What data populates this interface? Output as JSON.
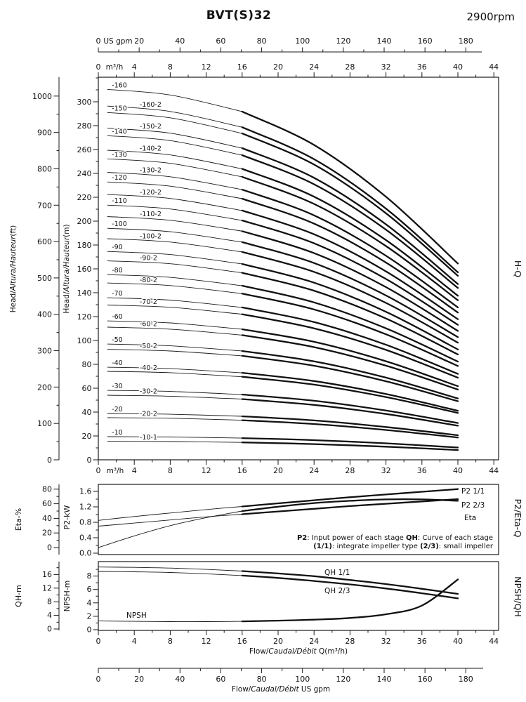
{
  "header": {
    "title": "BVT(S)32",
    "rpm": "2900rpm"
  },
  "labels": {
    "head_ft": [
      "Head/",
      "Altura/Hauteur",
      "(ft)"
    ],
    "head_m": [
      "Head/",
      "Altura/Hauteur",
      "(m)"
    ],
    "flow_m3h": [
      "Flow/",
      "Caudal/Débit",
      " Q(m³/h)"
    ],
    "flow_gpm": [
      "Flow/",
      "Caudal/Débit",
      "  US gpm"
    ],
    "eta_axis": "Eta-%",
    "p2_axis": "P2-kW",
    "qh_axis": "QH-m",
    "npsh_axis": "NPSH-m",
    "right_hq": "H-Q",
    "right_p2": "P2/Eta-Q",
    "right_npsh": "NPSH/QH",
    "unit_m3h": "m³/h",
    "unit_gpm": "US gpm"
  },
  "annotation": {
    "line1": [
      [
        "P2",
        2
      ],
      [
        ": Input power of each stage ",
        0
      ],
      [
        "QH",
        2
      ],
      [
        ": Curve of each stage",
        0
      ]
    ],
    "line2": [
      [
        "(1/1)",
        2
      ],
      [
        ": integrate impeller type ",
        0
      ],
      [
        "(2/3)",
        2
      ],
      [
        ": small impeller",
        0
      ]
    ]
  },
  "chart_data": [
    {
      "name": "H-Q",
      "type": "line",
      "x": {
        "unit": "m³/h",
        "range": [
          0,
          44
        ],
        "m3h_ticks": [
          0,
          4,
          8,
          12,
          16,
          20,
          24,
          28,
          32,
          36,
          40,
          44
        ],
        "gpm_ticks": [
          0,
          20,
          40,
          60,
          80,
          100,
          120,
          140,
          160,
          180
        ],
        "gpm_range": [
          0,
          196
        ]
      },
      "y": {
        "unit": "m",
        "range_m": [
          0,
          320
        ],
        "m_ticks": [
          0,
          20,
          40,
          60,
          80,
          100,
          120,
          140,
          160,
          180,
          200,
          220,
          240,
          260,
          280,
          300
        ],
        "range_ft": [
          0,
          1050
        ],
        "ft_ticks": [
          0,
          100,
          200,
          300,
          400,
          500,
          600,
          700,
          800,
          900,
          1000
        ]
      },
      "q": [
        1,
        8,
        16,
        24,
        32,
        40
      ],
      "series": [
        {
          "name": "-160",
          "values": [
            310.4,
            305.7,
            291.8,
            263.8,
            220.4,
            164.5
          ]
        },
        {
          "name": "-160-2",
          "values": [
            296.4,
            291.9,
            278.7,
            251.9,
            210.5,
            157.1
          ]
        },
        {
          "name": "-150",
          "values": [
            291.0,
            286.6,
            273.5,
            247.4,
            206.6,
            154.2
          ]
        },
        {
          "name": "-150-2",
          "values": [
            277.9,
            273.7,
            261.2,
            236.3,
            197.3,
            147.3
          ]
        },
        {
          "name": "-140",
          "values": [
            271.6,
            267.5,
            255.3,
            230.9,
            192.8,
            144.0
          ]
        },
        {
          "name": "-140-2",
          "values": [
            259.4,
            255.5,
            243.8,
            220.5,
            184.1,
            137.5
          ]
        },
        {
          "name": "-130",
          "values": [
            252.2,
            248.4,
            237.1,
            214.4,
            179.1,
            133.7
          ]
        },
        {
          "name": "-130-2",
          "values": [
            240.9,
            237.2,
            226.4,
            204.8,
            171.0,
            127.7
          ]
        },
        {
          "name": "-120",
          "values": [
            232.8,
            229.3,
            218.8,
            197.9,
            165.3,
            123.4
          ]
        },
        {
          "name": "-120-2",
          "values": [
            222.3,
            219.0,
            208.9,
            189.0,
            157.9,
            117.8
          ]
        },
        {
          "name": "-110",
          "values": [
            213.4,
            210.2,
            200.6,
            181.4,
            151.5,
            113.1
          ]
        },
        {
          "name": "-110-2",
          "values": [
            203.8,
            200.7,
            191.6,
            173.2,
            144.7,
            108.0
          ]
        },
        {
          "name": "-100",
          "values": [
            194.0,
            191.1,
            182.4,
            164.9,
            137.7,
            102.8
          ]
        },
        {
          "name": "-100-2",
          "values": [
            185.3,
            182.5,
            174.2,
            157.5,
            131.5,
            98.2
          ]
        },
        {
          "name": "-90",
          "values": [
            174.6,
            172.0,
            164.1,
            148.4,
            124.0,
            92.5
          ]
        },
        {
          "name": "-90-2",
          "values": [
            166.7,
            164.3,
            156.7,
            141.7,
            118.4,
            88.3
          ]
        },
        {
          "name": "-80",
          "values": [
            155.2,
            152.9,
            145.9,
            131.9,
            110.2,
            82.3
          ]
        },
        {
          "name": "-80-2",
          "values": [
            148.2,
            146.0,
            139.3,
            126.0,
            105.2,
            78.6
          ]
        },
        {
          "name": "-70",
          "values": [
            135.8,
            133.8,
            127.7,
            115.4,
            96.4,
            72.0
          ]
        },
        {
          "name": "-70-2",
          "values": [
            129.7,
            127.8,
            122.0,
            110.2,
            92.1,
            68.8
          ]
        },
        {
          "name": "-60",
          "values": [
            116.4,
            114.7,
            109.4,
            98.9,
            82.6,
            61.7
          ]
        },
        {
          "name": "-60-2",
          "values": [
            111.2,
            109.5,
            104.5,
            94.4,
            78.9,
            58.9
          ]
        },
        {
          "name": "-50",
          "values": [
            97.0,
            95.5,
            91.2,
            82.5,
            68.9,
            51.4
          ]
        },
        {
          "name": "-50-2",
          "values": [
            92.6,
            91.2,
            87.1,
            78.8,
            65.8,
            49.1
          ]
        },
        {
          "name": "-40",
          "values": [
            77.6,
            76.4,
            72.9,
            66.0,
            55.1,
            41.1
          ]
        },
        {
          "name": "-40-2",
          "values": [
            74.1,
            73.0,
            69.6,
            63.0,
            52.6,
            39.3
          ]
        },
        {
          "name": "-30",
          "values": [
            58.2,
            57.3,
            54.7,
            49.5,
            41.3,
            30.8
          ]
        },
        {
          "name": "-30-2",
          "values": [
            54.1,
            53.3,
            50.9,
            46.0,
            38.4,
            28.6
          ]
        },
        {
          "name": "-20",
          "values": [
            38.8,
            38.2,
            36.5,
            33.0,
            27.5,
            20.6
          ]
        },
        {
          "name": "-20-2",
          "values": [
            35.3,
            34.8,
            33.2,
            30.0,
            25.0,
            18.7
          ]
        },
        {
          "name": "-10",
          "values": [
            19.4,
            19.1,
            18.2,
            16.5,
            13.8,
            10.3
          ]
        },
        {
          "name": "-10-1",
          "values": [
            15.5,
            15.3,
            14.6,
            13.2,
            11.0,
            8.2
          ]
        }
      ]
    },
    {
      "name": "P2/Eta-Q",
      "type": "line",
      "q": [
        0,
        4,
        8,
        12,
        16,
        20,
        24,
        28,
        32,
        36,
        40
      ],
      "eta_ticks": [
        0,
        20,
        40,
        60,
        80
      ],
      "eta_range": [
        0,
        86
      ],
      "p2_ticks": [
        "0.0",
        "0.4",
        "0.8",
        "1.2",
        "1.6"
      ],
      "p2_range": [
        0,
        1.78
      ],
      "series": [
        {
          "name": "P2 1/1",
          "axis": "p2",
          "values": [
            0.85,
            0.95,
            1.04,
            1.13,
            1.21,
            1.29,
            1.37,
            1.45,
            1.52,
            1.59,
            1.66
          ]
        },
        {
          "name": "P2 2/3",
          "axis": "p2",
          "values": [
            0.7,
            0.78,
            0.86,
            0.94,
            1.01,
            1.08,
            1.15,
            1.22,
            1.28,
            1.34,
            1.4
          ]
        },
        {
          "name": "Eta",
          "axis": "eta",
          "values": [
            0,
            16,
            30,
            41,
            50,
            56,
            61,
            64,
            66,
            66,
            64
          ]
        }
      ]
    },
    {
      "name": "NPSH/QH",
      "type": "line",
      "q": [
        0,
        4,
        8,
        12,
        16,
        20,
        24,
        28,
        32,
        36,
        40
      ],
      "qh_ticks": [
        0,
        4,
        8,
        12,
        16
      ],
      "qh_range": [
        0,
        19.8
      ],
      "npsh_ticks": [
        0,
        2,
        4,
        6,
        8
      ],
      "npsh_range": [
        0,
        10.2
      ],
      "series": [
        {
          "name": "QH 1/1",
          "axis": "qh",
          "values": [
            18.2,
            18.1,
            17.9,
            17.5,
            17.0,
            16.3,
            15.5,
            14.4,
            13.2,
            11.8,
            10.3
          ]
        },
        {
          "name": "QH 2/3",
          "axis": "qh",
          "values": [
            16.9,
            16.8,
            16.6,
            16.2,
            15.7,
            15.0,
            14.1,
            13.1,
            11.9,
            10.5,
            9.0
          ]
        },
        {
          "name": "NPSH",
          "axis": "npsh",
          "values": [
            1.3,
            1.25,
            1.2,
            1.2,
            1.25,
            1.35,
            1.5,
            1.75,
            2.3,
            3.6,
            7.5
          ]
        }
      ]
    }
  ]
}
